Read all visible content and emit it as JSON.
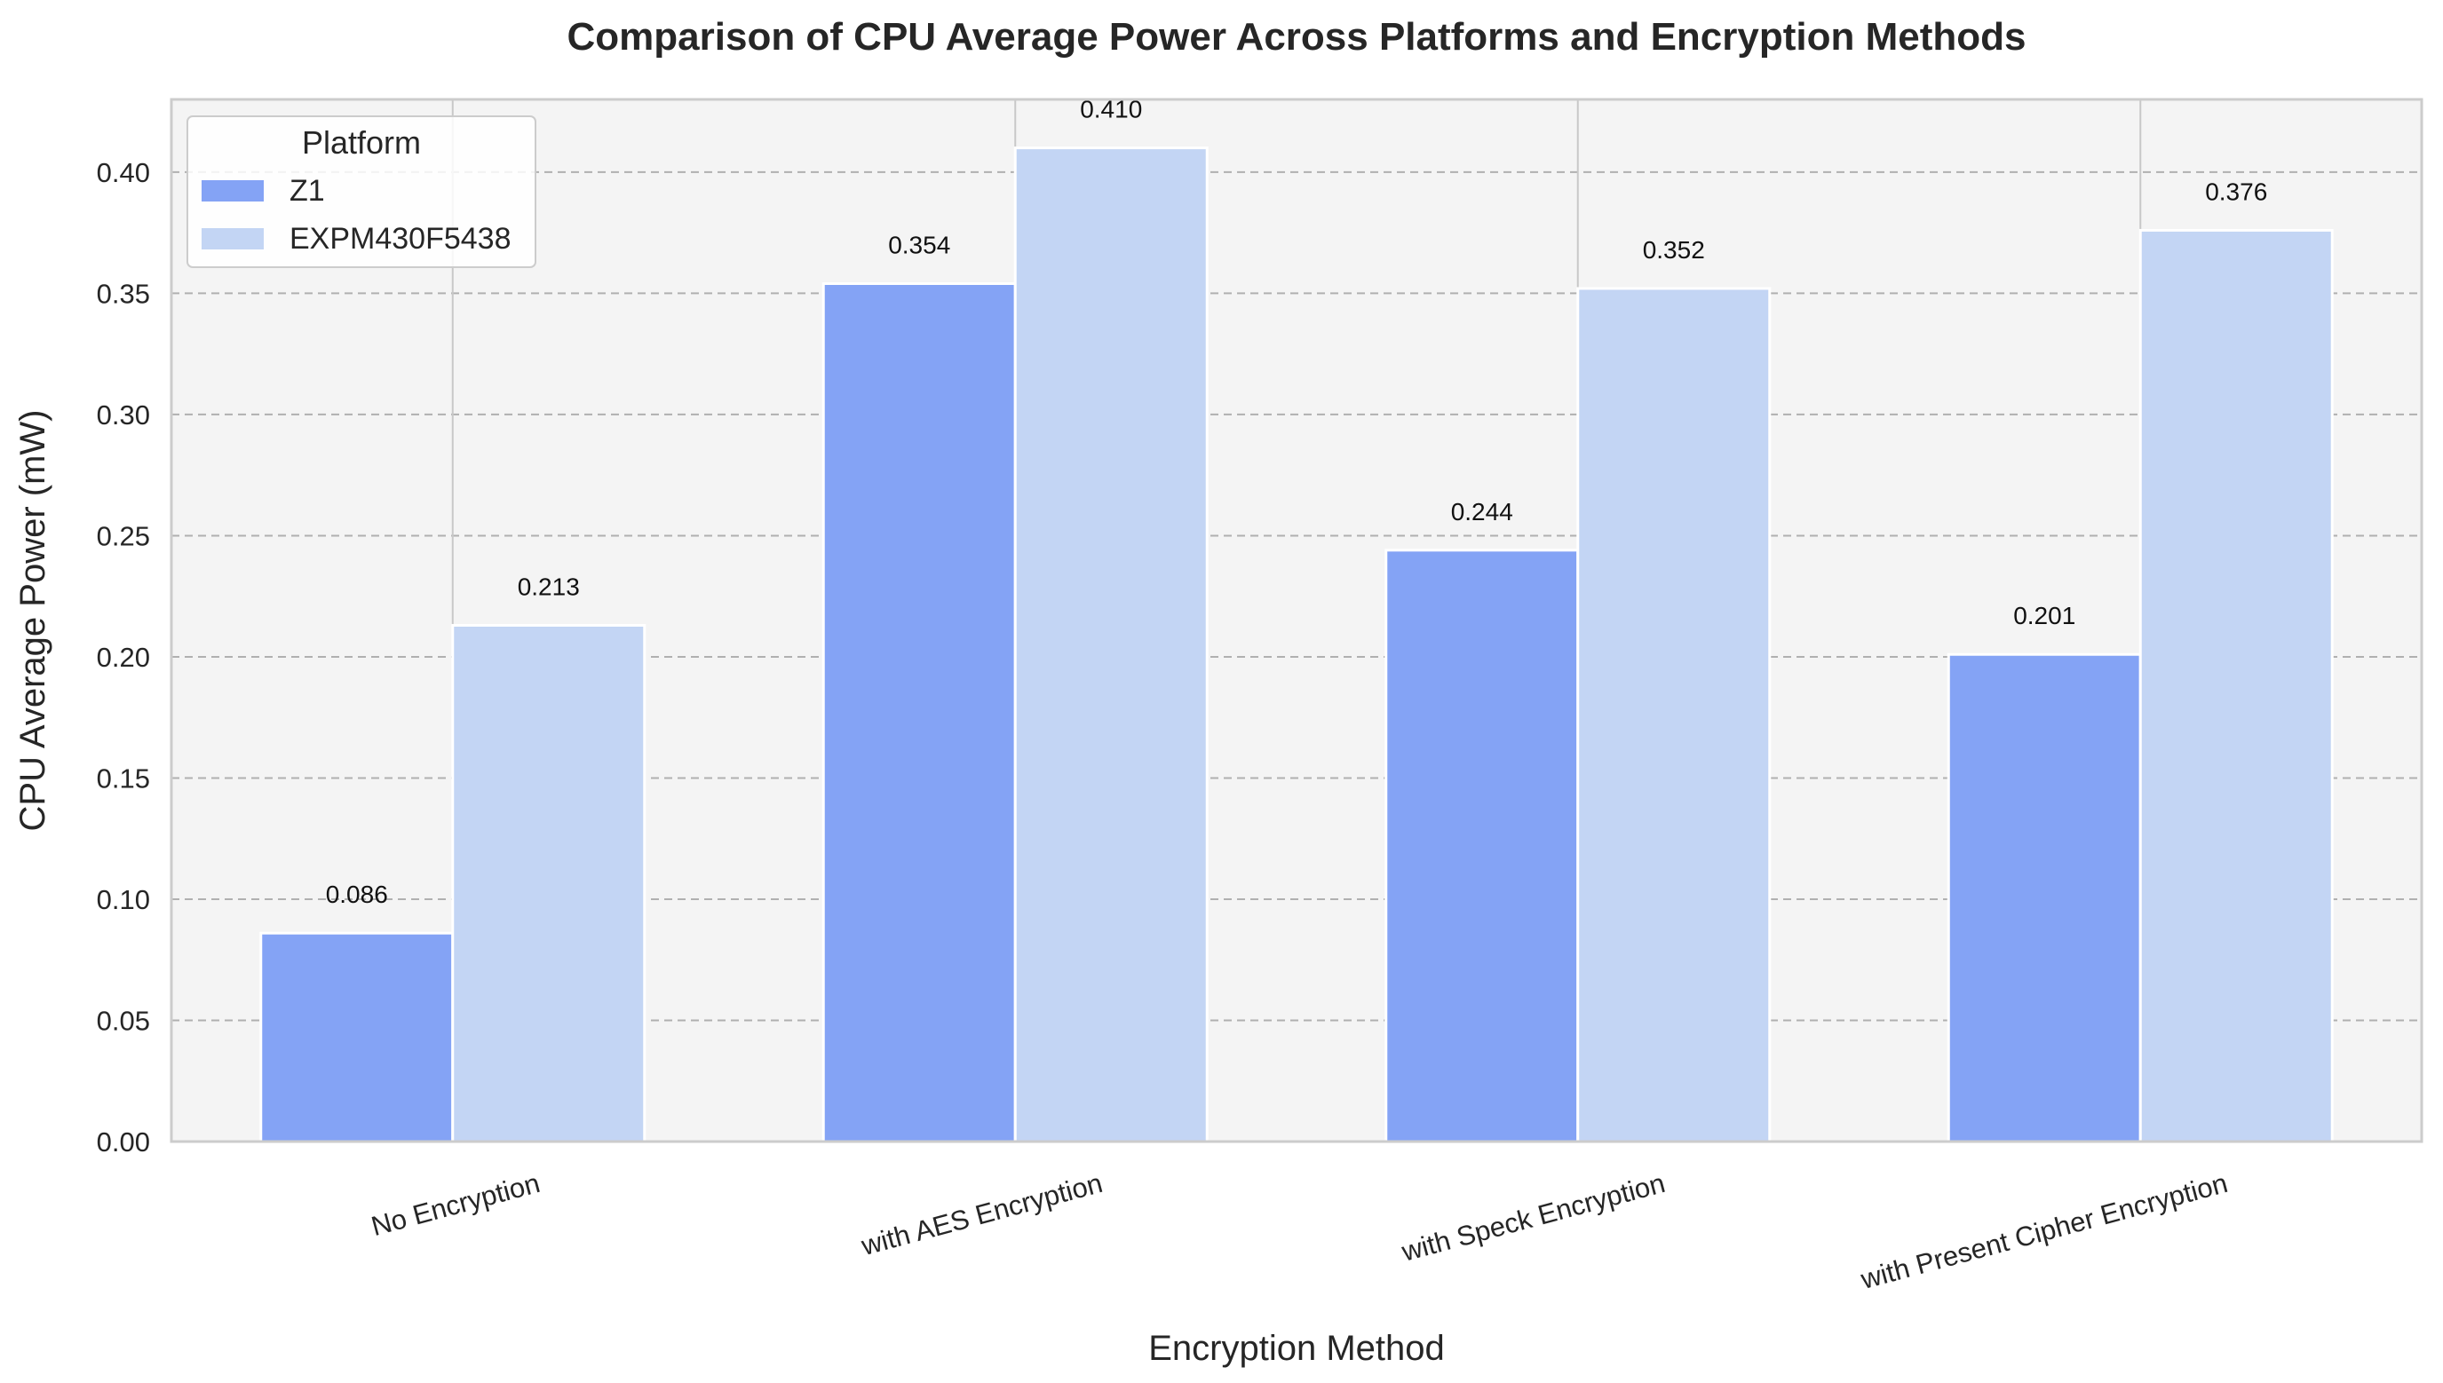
{
  "chart_data": {
    "type": "bar",
    "title": "Comparison of CPU Average Power Across Platforms and Encryption Methods",
    "xlabel": "Encryption Method",
    "ylabel": "CPU Average Power (mW)",
    "categories": [
      "No Encryption",
      "with AES Encryption",
      "with Speck Encryption",
      "with Present Cipher Encryption"
    ],
    "series": [
      {
        "name": "Z1",
        "values": [
          0.086,
          0.354,
          0.244,
          0.201
        ],
        "labels": [
          "0.086",
          "0.354",
          "0.244",
          "0.201"
        ],
        "color": "#84a3f5"
      },
      {
        "name": "EXPM430F5438",
        "values": [
          0.213,
          0.41,
          0.352,
          0.376
        ],
        "labels": [
          "0.213",
          "0.410",
          "0.352",
          "0.376"
        ],
        "color": "#c3d5f4"
      }
    ],
    "ylim": [
      0,
      0.43
    ],
    "yticks": [
      0.0,
      0.05,
      0.1,
      0.15,
      0.2,
      0.25,
      0.3,
      0.35,
      0.4
    ],
    "ytick_labels": [
      "0.00",
      "0.05",
      "0.10",
      "0.15",
      "0.20",
      "0.25",
      "0.30",
      "0.35",
      "0.40"
    ],
    "grid": "y, dashed",
    "legend": {
      "title": "Platform",
      "placement": "top-left"
    },
    "colors": {
      "background": "#f4f4f4",
      "grid": "#b0b0b0",
      "frame": "#cccccc"
    }
  }
}
